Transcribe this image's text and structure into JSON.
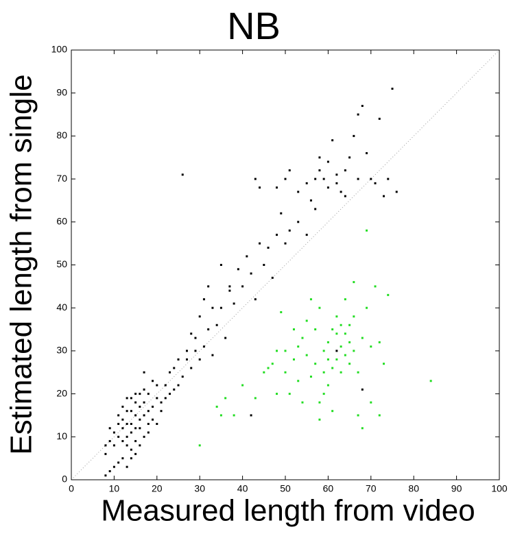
{
  "chart_data": {
    "type": "scatter",
    "title": "NB",
    "xlabel": "Measured length from video",
    "ylabel": "Estimated length from single",
    "xlim": [
      0,
      100
    ],
    "ylim": [
      0,
      100
    ],
    "xticks": [
      0,
      10,
      20,
      30,
      40,
      50,
      60,
      70,
      80,
      90,
      100
    ],
    "yticks": [
      0,
      10,
      20,
      30,
      40,
      50,
      60,
      70,
      80,
      90,
      100
    ],
    "series": [
      {
        "color": "#000000",
        "x": [
          12,
          13,
          14,
          15,
          16,
          13,
          14,
          15,
          16,
          17,
          12,
          11,
          13,
          14,
          15,
          16,
          17,
          18,
          12,
          13,
          14,
          15,
          11,
          10,
          18,
          19,
          17,
          16,
          14,
          12,
          11,
          13,
          15,
          18,
          19,
          10,
          9,
          8,
          9,
          8,
          10,
          12,
          11,
          20,
          20,
          21,
          19,
          17,
          16,
          14,
          13,
          15,
          18,
          17,
          20,
          9,
          8,
          22,
          23,
          24,
          25,
          26,
          27,
          28,
          29,
          30,
          31,
          32,
          33,
          30,
          28,
          31,
          32,
          34,
          35,
          36,
          37,
          38,
          39,
          40,
          41,
          42,
          43,
          44,
          45,
          47,
          48,
          49,
          50,
          51,
          53,
          55,
          56,
          57,
          26,
          43,
          44,
          48,
          50,
          51,
          53,
          55,
          57,
          58,
          59,
          60,
          61,
          62,
          63,
          64,
          65,
          66,
          67,
          68,
          69,
          70,
          71,
          72,
          73,
          74,
          75,
          76,
          62,
          60,
          64,
          67,
          58,
          42,
          62,
          68,
          37,
          35,
          46,
          33,
          29,
          27,
          25,
          24,
          22,
          21,
          23
        ],
        "values": [
          12,
          10,
          13,
          15,
          14,
          16,
          11,
          12,
          17,
          15,
          14,
          10,
          13,
          16,
          18,
          12,
          18,
          16,
          9,
          8,
          7,
          9,
          13,
          11,
          20,
          17,
          21,
          20,
          19,
          17,
          15,
          19,
          20,
          13,
          14,
          8,
          9,
          6,
          2,
          1,
          3,
          5,
          4,
          19,
          22,
          18,
          23,
          10,
          8,
          5,
          3,
          6,
          11,
          25,
          13,
          12,
          8,
          22,
          25,
          21,
          28,
          24,
          30,
          26,
          33,
          28,
          31,
          35,
          29,
          38,
          34,
          42,
          45,
          36,
          40,
          33,
          44,
          41,
          49,
          45,
          52,
          48,
          42,
          55,
          50,
          47,
          57,
          62,
          55,
          58,
          60,
          57,
          65,
          63,
          71,
          70,
          68,
          68,
          70,
          72,
          67,
          69,
          70,
          72,
          70,
          74,
          79,
          71,
          67,
          72,
          75,
          80,
          85,
          87,
          76,
          70,
          69,
          84,
          66,
          70,
          91,
          67,
          69,
          68,
          66,
          70,
          75,
          15,
          30,
          21,
          45,
          50,
          54,
          40,
          30,
          28,
          22,
          26,
          19,
          16,
          20
        ]
      },
      {
        "color": "#22dd22",
        "x": [
          30,
          34,
          35,
          36,
          38,
          40,
          43,
          45,
          46,
          47,
          48,
          49,
          50,
          51,
          52,
          53,
          54,
          55,
          56,
          57,
          58,
          59,
          60,
          61,
          62,
          63,
          64,
          65,
          66,
          67,
          68,
          69,
          70,
          71,
          72,
          73,
          74,
          69,
          66,
          64,
          62,
          60,
          58,
          59,
          61,
          63,
          65,
          67,
          68,
          70,
          72,
          84,
          55,
          53,
          50,
          48,
          57,
          60,
          62,
          64,
          66,
          65,
          63,
          61,
          56,
          54,
          58,
          52,
          59
        ],
        "values": [
          8,
          17,
          15,
          19,
          15,
          22,
          19,
          25,
          26,
          27,
          30,
          39,
          25,
          20,
          28,
          31,
          33,
          29,
          24,
          27,
          18,
          30,
          32,
          35,
          28,
          31,
          34,
          36,
          30,
          25,
          33,
          40,
          31,
          45,
          32,
          27,
          43,
          58,
          46,
          42,
          38,
          22,
          14,
          20,
          16,
          25,
          27,
          15,
          12,
          18,
          15,
          23,
          37,
          23,
          30,
          20,
          35,
          28,
          34,
          29,
          38,
          32,
          36,
          26,
          42,
          18,
          40,
          35,
          25
        ]
      }
    ]
  }
}
